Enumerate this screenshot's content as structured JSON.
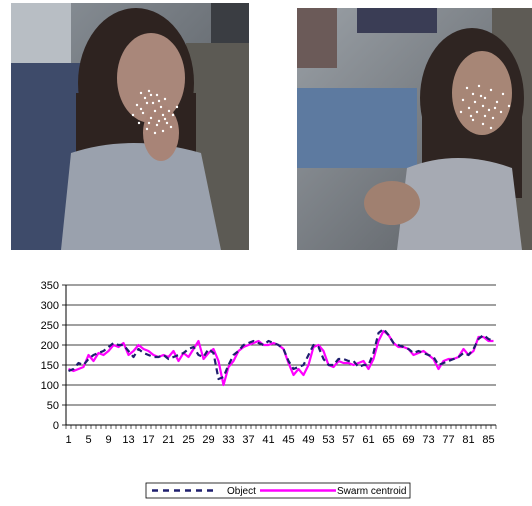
{
  "figure": {
    "left_image": "Video frame: person with swarm particles over face",
    "right_image": "Video frame: person with swarm particles over face"
  },
  "chart_data": {
    "type": "line",
    "ylim": [
      0,
      350
    ],
    "yticks": [
      0,
      50,
      100,
      150,
      200,
      250,
      300,
      350
    ],
    "x": [
      1,
      2,
      3,
      4,
      5,
      6,
      7,
      8,
      9,
      10,
      11,
      12,
      13,
      14,
      15,
      16,
      17,
      18,
      19,
      20,
      21,
      22,
      23,
      24,
      25,
      26,
      27,
      28,
      29,
      30,
      31,
      32,
      33,
      34,
      35,
      36,
      37,
      38,
      39,
      40,
      41,
      42,
      43,
      44,
      45,
      46,
      47,
      48,
      49,
      50,
      51,
      52,
      53,
      54,
      55,
      56,
      57,
      58,
      59,
      60,
      61,
      62,
      63,
      64,
      65,
      66,
      67,
      68,
      69,
      70,
      71,
      72,
      73,
      74,
      75,
      76,
      77,
      78,
      79,
      80,
      81,
      82,
      83,
      84,
      85,
      86
    ],
    "xtick_labels": [
      "1",
      "5",
      "9",
      "13",
      "17",
      "21",
      "25",
      "29",
      "33",
      "37",
      "41",
      "45",
      "49",
      "53",
      "57",
      "61",
      "65",
      "69",
      "73",
      "77",
      "81",
      "85"
    ],
    "series": [
      {
        "name": "Object",
        "color": "#1f1f6e",
        "dash": true,
        "values": [
          135,
          140,
          155,
          150,
          165,
          175,
          180,
          185,
          195,
          205,
          200,
          200,
          185,
          170,
          190,
          180,
          175,
          170,
          170,
          175,
          165,
          170,
          175,
          180,
          190,
          195,
          175,
          170,
          190,
          180,
          115,
          120,
          150,
          175,
          185,
          200,
          205,
          210,
          205,
          200,
          210,
          205,
          200,
          190,
          160,
          140,
          145,
          150,
          175,
          200,
          195,
          165,
          150,
          150,
          165,
          165,
          160,
          160,
          145,
          150,
          150,
          180,
          230,
          240,
          225,
          205,
          200,
          195,
          190,
          180,
          185,
          180,
          175,
          170,
          150,
          155,
          160,
          165,
          170,
          180,
          175,
          190,
          215,
          225,
          215,
          210
        ]
      },
      {
        "name": "Swarm centroid",
        "color": "#ff00ff",
        "dash": false,
        "values": [
          140,
          135,
          140,
          145,
          175,
          160,
          180,
          175,
          185,
          200,
          195,
          205,
          175,
          185,
          200,
          190,
          185,
          175,
          170,
          175,
          170,
          185,
          160,
          180,
          170,
          190,
          210,
          165,
          180,
          190,
          160,
          100,
          145,
          160,
          185,
          195,
          200,
          205,
          210,
          200,
          200,
          205,
          200,
          190,
          155,
          125,
          140,
          125,
          150,
          195,
          200,
          185,
          150,
          145,
          160,
          155,
          155,
          150,
          155,
          160,
          140,
          165,
          210,
          235,
          225,
          205,
          195,
          195,
          190,
          175,
          180,
          185,
          175,
          165,
          140,
          160,
          165,
          165,
          170,
          190,
          175,
          185,
          220,
          220,
          210,
          210
        ]
      }
    ],
    "legend_position": "bottom",
    "grid": true
  }
}
